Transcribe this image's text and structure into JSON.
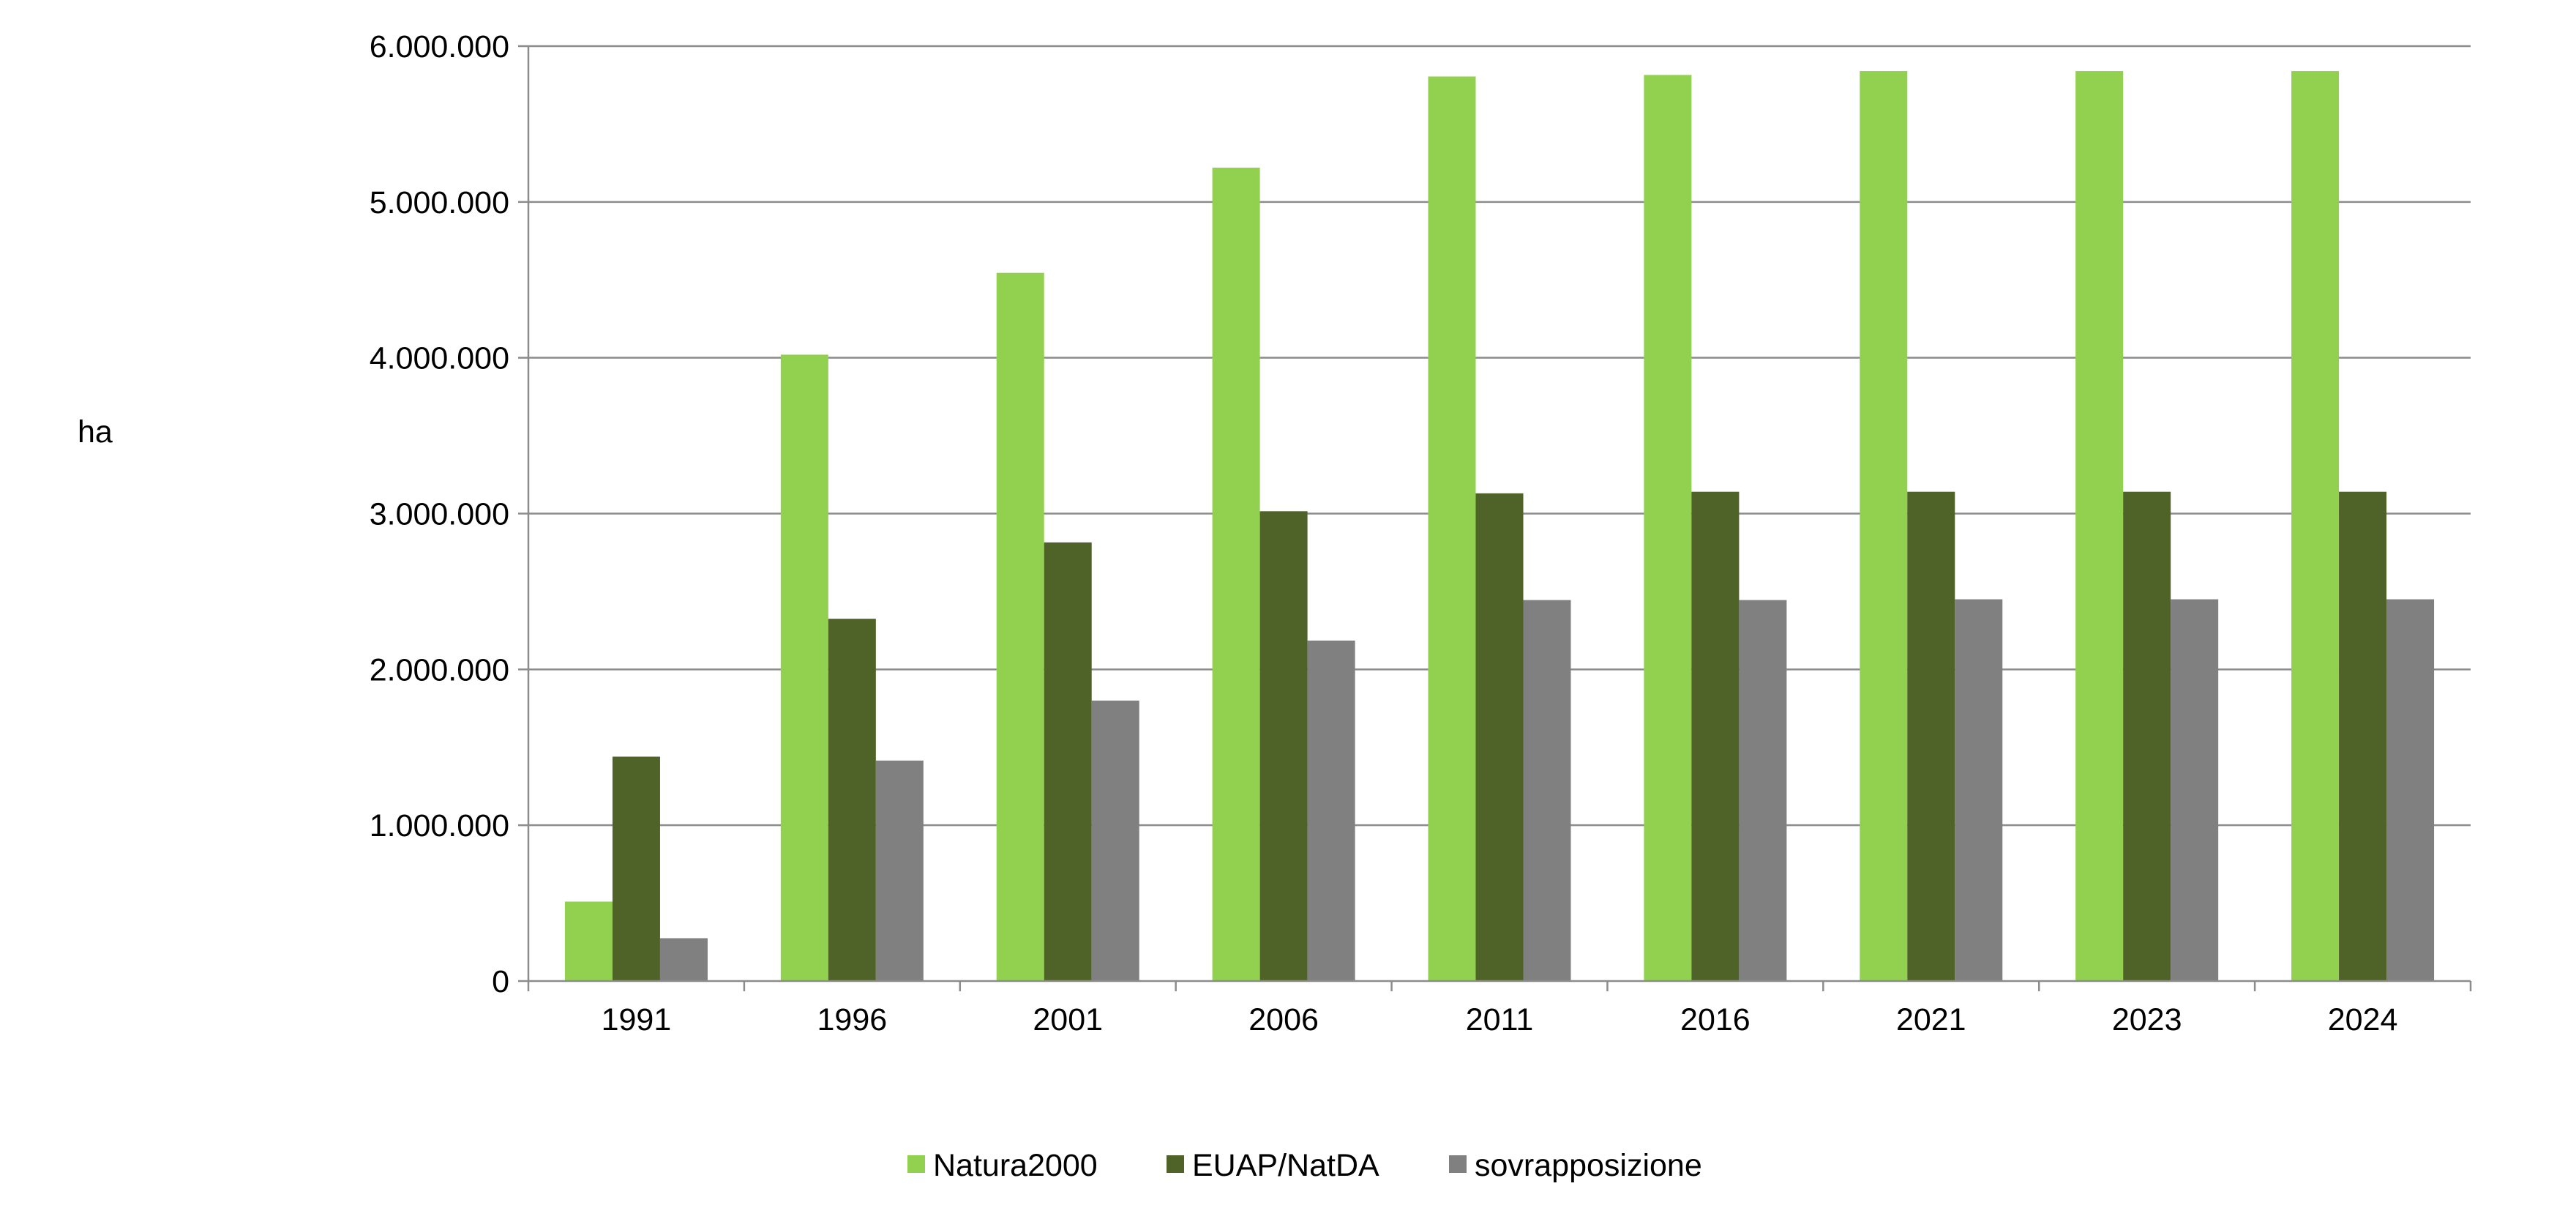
{
  "chart_data": {
    "type": "bar",
    "ylabel": "ha",
    "xlabel": "",
    "ylim": [
      0,
      6000000
    ],
    "yticks": [
      0,
      1000000,
      2000000,
      3000000,
      4000000,
      5000000,
      6000000
    ],
    "ytick_labels": [
      "0",
      "1.000.000",
      "2.000.000",
      "3.000.000",
      "4.000.000",
      "5.000.000",
      "6.000.000"
    ],
    "grid": true,
    "legend_position": "bottom",
    "categories": [
      "1991",
      "1996",
      "2001",
      "2006",
      "2011",
      "2016",
      "2021",
      "2023",
      "2024"
    ],
    "series": [
      {
        "name": "Natura2000",
        "color": "#92d050",
        "values": [
          510000,
          4020000,
          4545000,
          5220000,
          5805000,
          5815000,
          5840000,
          5840000,
          5840000
        ]
      },
      {
        "name": "EUAP/NatDA",
        "color": "#4f6228",
        "values": [
          1440000,
          2325000,
          2815000,
          3015000,
          3130000,
          3140000,
          3140000,
          3140000,
          3140000
        ]
      },
      {
        "name": "sovrapposizione",
        "color": "#808080",
        "values": [
          275000,
          1415000,
          1800000,
          2185000,
          2445000,
          2445000,
          2450000,
          2450000,
          2450000
        ]
      }
    ]
  }
}
